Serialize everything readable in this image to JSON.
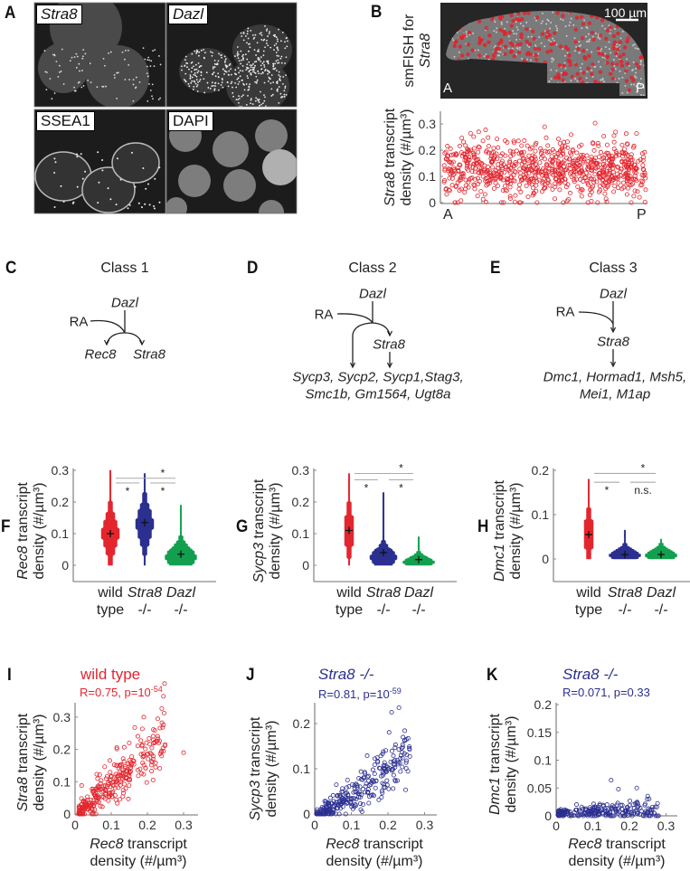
{
  "panels": {
    "A": "A",
    "B": "B",
    "C": "C",
    "D": "D",
    "E": "E",
    "F": "F",
    "G": "G",
    "H": "H",
    "I": "I",
    "J": "J",
    "K": "K"
  },
  "micrographs": [
    {
      "label": "Stra8",
      "italic": true
    },
    {
      "label": "Dazl",
      "italic": true
    },
    {
      "label": "SSEA1",
      "italic": false
    },
    {
      "label": "DAPI",
      "italic": false
    }
  ],
  "smfish": {
    "label_line1": "smFISH for",
    "label_gene": "Stra8",
    "scale_bar": "100 µm",
    "anterior": "A",
    "posterior": "P"
  },
  "pathways": [
    {
      "title": "Class 1",
      "upstream": "Dazl",
      "signal": "RA",
      "targets": [
        "Rec8",
        "Stra8"
      ]
    },
    {
      "title": "Class 2",
      "upstream": "Dazl",
      "signal": "RA",
      "intermediate": "Stra8",
      "genes_line1": "Sycp3, Sycp2, Sycp1,Stag3,",
      "genes_line2": "Smc1b, Gm1564, Ugt8a"
    },
    {
      "title": "Class 3",
      "upstream": "Dazl",
      "signal": "RA",
      "intermediate": "Stra8",
      "genes_line1": "Dmc1, Hormad1, Msh5,",
      "genes_line2": "Mei1, M1ap"
    }
  ],
  "colors": {
    "wild_type": "#e3262e",
    "stra8_ko": "#2b2f8f",
    "dazl_ko": "#12a04e",
    "axis": "#8a8a8a"
  },
  "categories": [
    {
      "line1": "wild",
      "line2": "type",
      "italic": false
    },
    {
      "line1": "Stra8",
      "line2": "-/-",
      "italic": true
    },
    {
      "line1": "Dazl",
      "line2": "-/-",
      "italic": true
    }
  ],
  "chart_data": [
    {
      "id": "B",
      "type": "scatter",
      "ylabel_gene": "Stra8",
      "ylabel_rest": " transcript",
      "ylabel_line2": "density (#/µm³)",
      "xlabel_left": "A",
      "xlabel_right": "P",
      "yticks": [
        0,
        0.1,
        0.2,
        0.3
      ],
      "ylim": [
        0,
        0.345
      ],
      "xlim": [
        0,
        1
      ],
      "series": [
        {
          "name": "wild type",
          "color": "#e3262e",
          "n": 820,
          "y_mean": 0.125,
          "y_sd": 0.055,
          "y_min": 0,
          "y_max": 0.31
        }
      ]
    },
    {
      "id": "F",
      "type": "violin",
      "ylabel_gene": "Rec8",
      "ylabel_rest": " transcript",
      "ylabel_line2": "density (#/µm³)",
      "yticks": [
        0,
        0.1,
        0.2,
        0.3
      ],
      "ylim": [
        -0.02,
        0.3
      ],
      "groups": [
        {
          "name": "wild type",
          "color": "#e3262e",
          "mean": 0.1,
          "mode": 0.1,
          "sd": 0.05,
          "min": 0,
          "max": 0.3,
          "rel_width": 0.55
        },
        {
          "name": "Stra8 -/-",
          "color": "#2b2f8f",
          "mean": 0.135,
          "mode": 0.13,
          "sd": 0.05,
          "min": 0,
          "max": 0.29,
          "rel_width": 0.55
        },
        {
          "name": "Dazl -/-",
          "color": "#12a04e",
          "mean": 0.035,
          "mode": 0.025,
          "sd": 0.03,
          "min": 0,
          "max": 0.19,
          "rel_width": 1
        }
      ],
      "significance": [
        {
          "pair": [
            0,
            1
          ],
          "label": "*",
          "level": 0.26
        },
        {
          "pair": [
            1,
            2
          ],
          "label": "*",
          "level": 0.26
        },
        {
          "pair": [
            0,
            2
          ],
          "label": "*",
          "level": 0.275
        }
      ]
    },
    {
      "id": "G",
      "type": "violin",
      "ylabel_gene": "Sycp3",
      "ylabel_rest": " transcript",
      "ylabel_line2": "density (#/µm³)",
      "yticks": [
        0,
        0.1,
        0.2,
        0.3
      ],
      "ylim": [
        -0.02,
        0.3
      ],
      "groups": [
        {
          "name": "wild type",
          "color": "#e3262e",
          "mean": 0.11,
          "mode": 0.11,
          "sd": 0.05,
          "min": 0,
          "max": 0.29,
          "rel_width": 0.35
        },
        {
          "name": "Stra8 -/-",
          "color": "#2b2f8f",
          "mean": 0.04,
          "mode": 0.025,
          "sd": 0.025,
          "min": 0,
          "max": 0.23,
          "rel_width": 0.85
        },
        {
          "name": "Dazl -/-",
          "color": "#12a04e",
          "mean": 0.018,
          "mode": 0.01,
          "sd": 0.015,
          "min": 0,
          "max": 0.09,
          "rel_width": 1
        }
      ],
      "significance": [
        {
          "pair": [
            0,
            1
          ],
          "label": "*",
          "level": 0.27
        },
        {
          "pair": [
            1,
            2
          ],
          "label": "*",
          "level": 0.27
        },
        {
          "pair": [
            0,
            2
          ],
          "label": "*",
          "level": 0.29
        }
      ]
    },
    {
      "id": "H",
      "type": "violin",
      "ylabel_gene": "Dmc1",
      "ylabel_rest": " transcript",
      "ylabel_line2": "density (#/µm³)",
      "yticks": [
        0,
        0.1,
        0.2
      ],
      "ylim": [
        -0.05,
        0.2
      ],
      "groups": [
        {
          "name": "wild type",
          "color": "#e3262e",
          "mean": 0.055,
          "mode": 0.055,
          "sd": 0.035,
          "min": 0,
          "max": 0.18,
          "rel_width": 0.35
        },
        {
          "name": "Stra8 -/-",
          "color": "#2b2f8f",
          "mean": 0.01,
          "mode": 0.008,
          "sd": 0.012,
          "min": 0,
          "max": 0.065,
          "rel_width": 1
        },
        {
          "name": "Dazl -/-",
          "color": "#12a04e",
          "mean": 0.01,
          "mode": 0.008,
          "sd": 0.012,
          "min": 0,
          "max": 0.045,
          "rel_width": 1
        }
      ],
      "significance": [
        {
          "pair": [
            0,
            1
          ],
          "label": "*",
          "level": 0.173
        },
        {
          "pair": [
            1,
            2
          ],
          "label": "n.s.",
          "level": 0.173
        },
        {
          "pair": [
            0,
            2
          ],
          "label": "*",
          "level": 0.193
        }
      ]
    },
    {
      "id": "I",
      "type": "scatter",
      "title": "wild type",
      "stat_text": "R=0.75, p=10",
      "stat_exp": "-54",
      "color": "#e3262e",
      "ylabel_gene": "Stra8",
      "ylabel_rest": " transcript",
      "ylabel_line2": "density (#/µm³)",
      "xlabel_gene": "Rec8",
      "xlabel_rest": " transcript",
      "xlabel_line2": "density (#/µm³)",
      "xticks": [
        0,
        0.1,
        0.2,
        0.3
      ],
      "yticks": [
        0,
        0.1,
        0.2,
        0.3
      ],
      "xlim": [
        0,
        0.34
      ],
      "ylim": [
        0,
        0.34
      ],
      "series": {
        "n": 300,
        "x_min": 0.01,
        "x_max": 0.25,
        "slope": 0.95,
        "intercept": -0.005,
        "noise_sd": 0.04,
        "outliers": [
          [
            0.3,
            0.19
          ],
          [
            0.19,
            0.3
          ]
        ]
      }
    },
    {
      "id": "J",
      "type": "scatter",
      "title": "Stra8 -/-",
      "stat_text": "R=0.81, p=10",
      "stat_exp": "-59",
      "color": "#2b2f8f",
      "ylabel_gene": "Sycp3",
      "ylabel_rest": " transcript",
      "ylabel_line2": "density (#/µm³)",
      "xlabel_gene": "Rec8",
      "xlabel_rest": " transcript",
      "xlabel_line2": "density (#/µm³)",
      "xticks": [
        0,
        0.1,
        0.2,
        0.3
      ],
      "yticks": [
        0,
        0.1,
        0.2
      ],
      "xlim": [
        0,
        0.335
      ],
      "ylim": [
        0,
        0.245
      ],
      "series": {
        "n": 300,
        "x_min": 0.005,
        "x_max": 0.26,
        "slope": 0.55,
        "intercept": -0.01,
        "noise_sd": 0.022,
        "outliers": [
          [
            0.23,
            0.235
          ],
          [
            0.21,
            0.225
          ],
          [
            0.25,
            0.165
          ]
        ]
      }
    },
    {
      "id": "K",
      "type": "scatter",
      "title": "Stra8 -/-",
      "stat_text": "R=0.071, p=0.33",
      "stat_exp": "",
      "color": "#2b2f8f",
      "ylabel_gene": "Dmc1",
      "ylabel_rest": " transcript",
      "ylabel_line2": "density (#/µm³)",
      "xlabel_gene": "Rec8",
      "xlabel_rest": " transcript",
      "xlabel_line2": "density (#/µm³)",
      "xticks": [
        0,
        0.1,
        0.2,
        0.3
      ],
      "yticks": [
        0,
        0.05,
        0.1,
        0.15,
        0.2
      ],
      "xlim": [
        0,
        0.33
      ],
      "ylim": [
        0,
        0.2
      ],
      "series": {
        "n": 230,
        "x_min": 0.005,
        "x_max": 0.28,
        "slope": 0.02,
        "intercept": 0.006,
        "noise_sd": 0.009,
        "outliers": [
          [
            0.15,
            0.064
          ],
          [
            0.22,
            0.05
          ],
          [
            0.17,
            0.048
          ]
        ]
      }
    }
  ]
}
